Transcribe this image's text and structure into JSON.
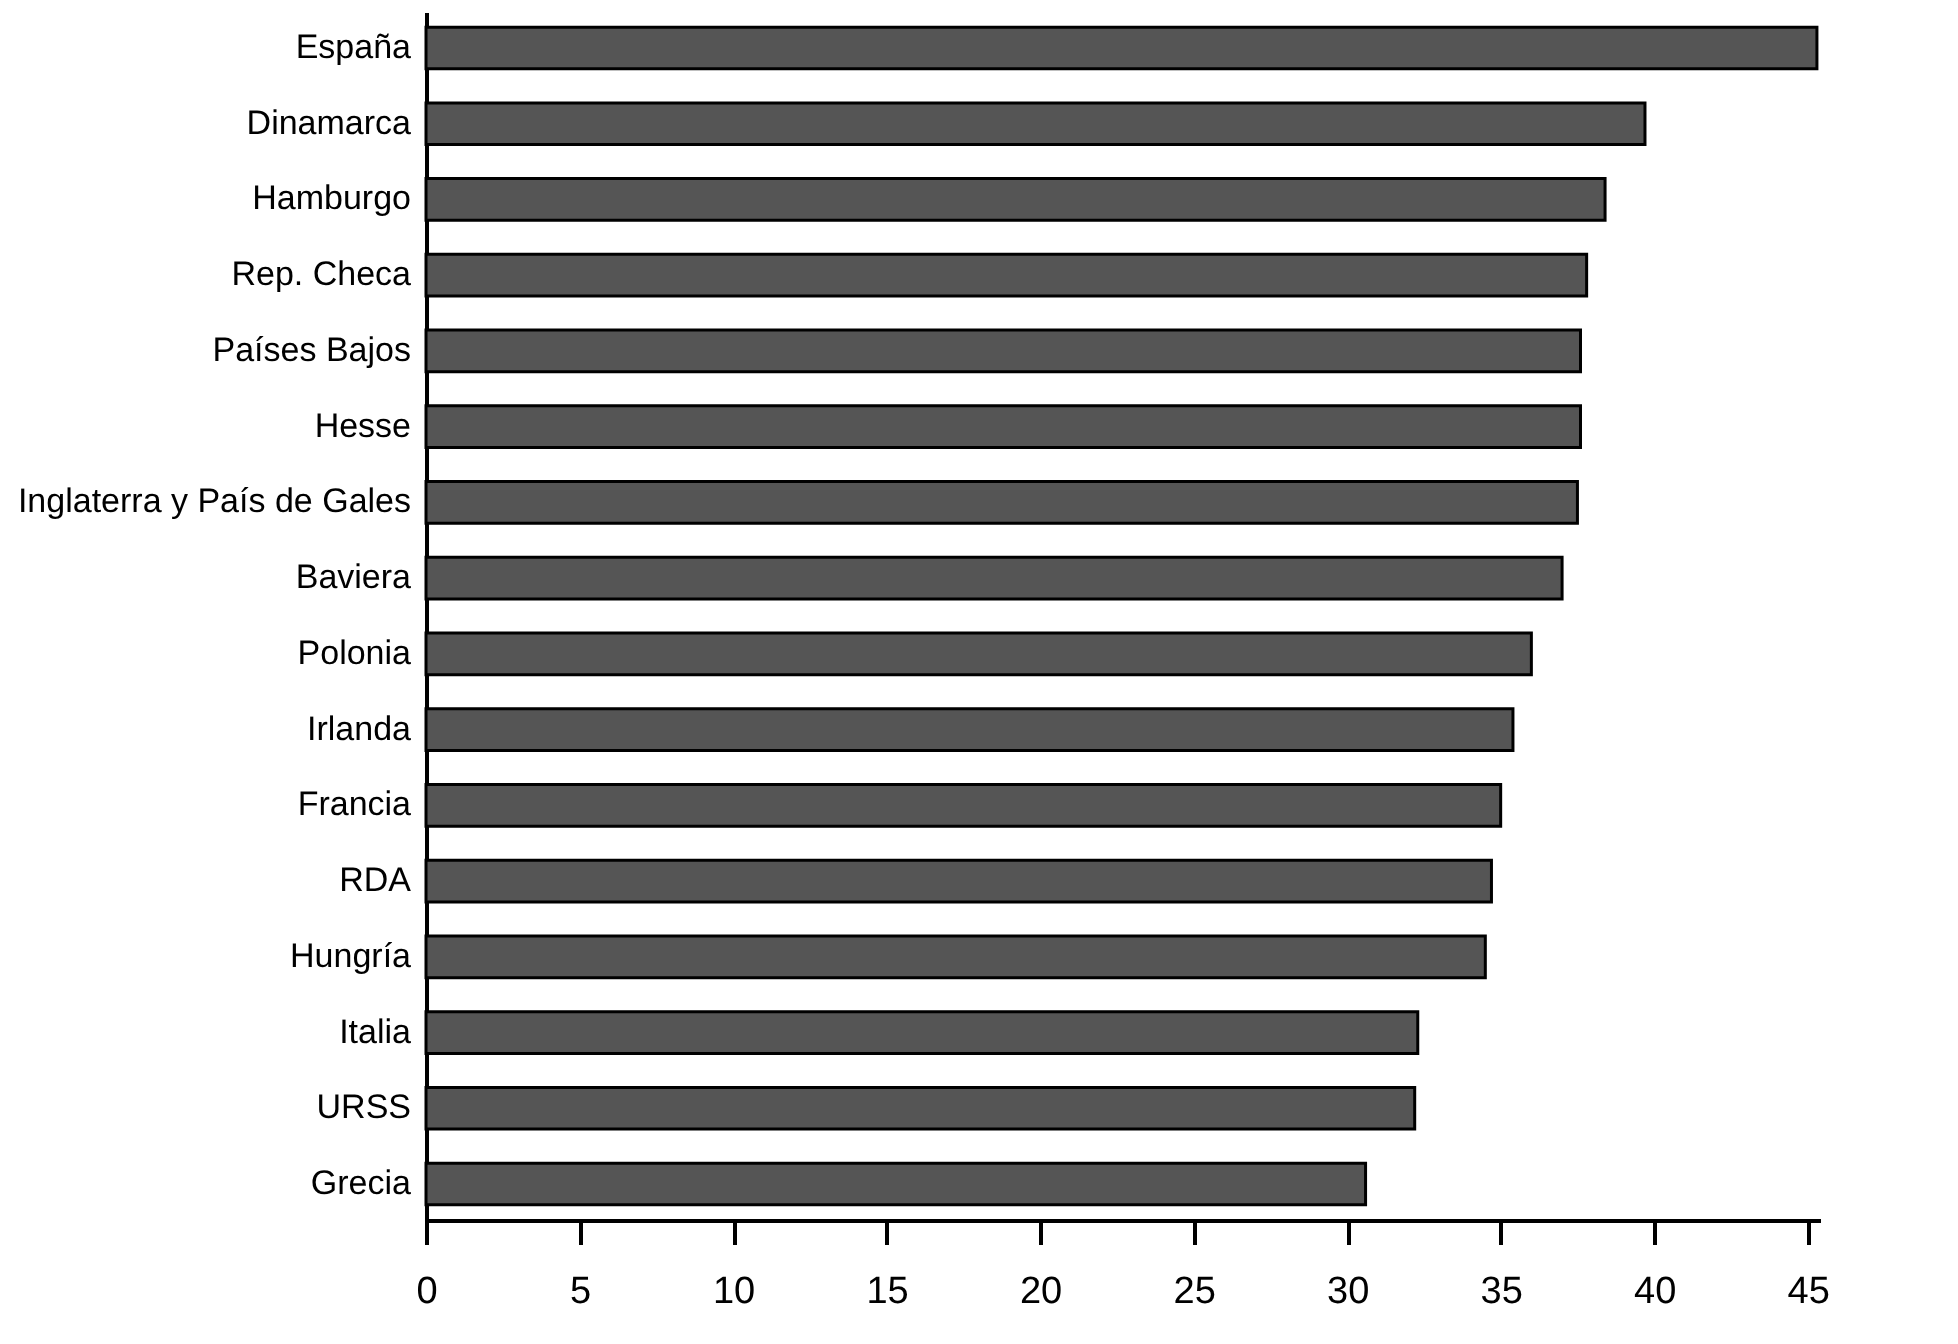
{
  "chart_data": {
    "type": "bar",
    "orientation": "horizontal",
    "categories": [
      "España",
      "Dinamarca",
      "Hamburgo",
      "Rep. Checa",
      "Países Bajos",
      "Hesse",
      "Inglaterra y País de Gales",
      "Baviera",
      "Polonia",
      "Irlanda",
      "Francia",
      "RDA",
      "Hungría",
      "Italia",
      "URSS",
      "Grecia"
    ],
    "values": [
      45.3,
      39.7,
      38.4,
      37.8,
      37.6,
      37.6,
      37.5,
      37.0,
      36.0,
      35.4,
      35.0,
      34.7,
      34.5,
      32.3,
      32.2,
      30.6
    ],
    "color": "#555555",
    "xlim": [
      0,
      45.4
    ],
    "xticks": [
      0,
      5,
      10,
      15,
      20,
      25,
      30,
      35,
      40,
      45
    ],
    "grid": false
  }
}
